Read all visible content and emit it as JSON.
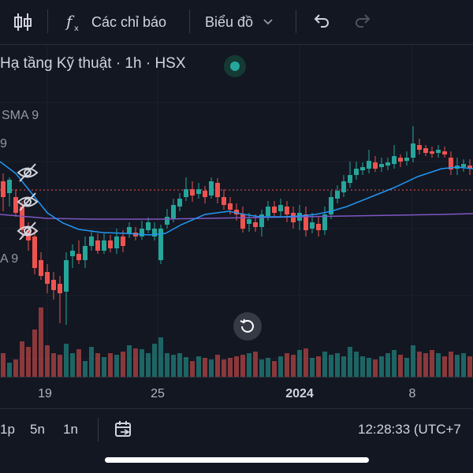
{
  "toolbar": {
    "indicators_label": "Các chỉ báo",
    "chart_type_label": "Biểu đồ"
  },
  "chart": {
    "title": "Hạ tầng Kỹ thuật · 1h · HSX",
    "indicator_labels": [
      "SMA 9",
      "9",
      "A 9"
    ],
    "x_labels": [
      "19",
      "25",
      "2024",
      "8"
    ],
    "colors": {
      "up": "#26a69a",
      "down": "#ef5350",
      "sma_fast": "#2196f3",
      "sma_slow": "#7e57c2",
      "price_line": "#ef5350"
    }
  },
  "bottom_bar": {
    "timeframes": [
      "1p",
      "5n",
      "1n"
    ],
    "clock": "12:28:33 (UTC+7"
  }
}
